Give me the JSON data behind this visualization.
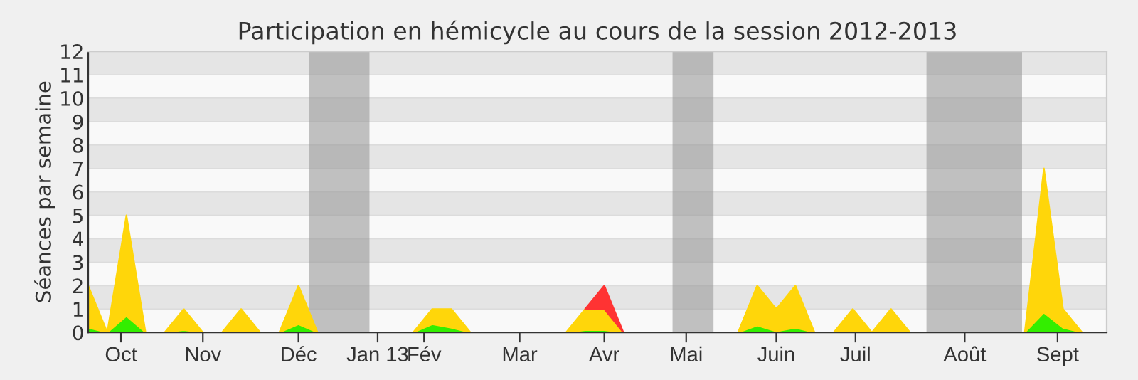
{
  "chart_data": {
    "type": "area",
    "stacked": true,
    "title": "Participation en hémicycle au cours de la session 2012-2013",
    "ylabel": "Séances par semaine",
    "x": [
      "2012-09-24",
      "2012-10-01",
      "2012-10-08",
      "2012-10-15",
      "2012-10-22",
      "2012-10-29",
      "2012-11-05",
      "2012-11-12",
      "2012-11-19",
      "2012-11-26",
      "2012-12-03",
      "2012-12-10",
      "2012-12-17",
      "2012-12-24",
      "2012-12-31",
      "2013-01-07",
      "2013-01-14",
      "2013-01-21",
      "2013-01-28",
      "2013-02-04",
      "2013-02-11",
      "2013-02-18",
      "2013-02-25",
      "2013-03-04",
      "2013-03-11",
      "2013-03-18",
      "2013-03-25",
      "2013-04-01",
      "2013-04-08",
      "2013-04-15",
      "2013-04-22",
      "2013-04-29",
      "2013-05-06",
      "2013-05-13",
      "2013-05-20",
      "2013-05-27",
      "2013-06-03",
      "2013-06-10",
      "2013-06-17",
      "2013-06-24",
      "2013-07-01",
      "2013-07-08",
      "2013-07-15",
      "2013-07-22",
      "2013-07-29",
      "2013-08-05",
      "2013-08-12",
      "2013-08-19",
      "2013-08-26",
      "2013-09-02",
      "2013-09-09",
      "2013-09-16",
      "2013-09-23"
    ],
    "series": [
      {
        "color": "#33ee00",
        "values": [
          0.2,
          0,
          0.7,
          0,
          0,
          0.1,
          0,
          0,
          0.05,
          0,
          0,
          0.35,
          0,
          0,
          0,
          0,
          0,
          0,
          0.35,
          0.2,
          0,
          0,
          0,
          0,
          0,
          0,
          0.1,
          0.1,
          0,
          0,
          0,
          0,
          0,
          0,
          0,
          0.3,
          0.05,
          0.2,
          0,
          0,
          0.05,
          0,
          0.05,
          0,
          0,
          0,
          0,
          0,
          0,
          0,
          0.85,
          0.2,
          0
        ]
      },
      {
        "color": "#ffd60a",
        "values": [
          1.8,
          0,
          4.3,
          0,
          0,
          0.9,
          0,
          0,
          0.95,
          0,
          0,
          1.65,
          0,
          0,
          0,
          0,
          0,
          0,
          0.65,
          0.8,
          0,
          0,
          0,
          0,
          0,
          0,
          0.9,
          0.9,
          0,
          0,
          0,
          0,
          0,
          0,
          0,
          1.7,
          0.95,
          1.8,
          0,
          0,
          0.95,
          0,
          0.95,
          0,
          0,
          0,
          0,
          0,
          0,
          0,
          6.15,
          0.8,
          0
        ]
      },
      {
        "color": "#ff3333",
        "values": [
          null,
          null,
          null,
          null,
          null,
          null,
          null,
          null,
          null,
          null,
          null,
          null,
          null,
          null,
          null,
          null,
          null,
          null,
          null,
          null,
          null,
          null,
          null,
          null,
          null,
          null,
          0,
          1,
          0,
          null,
          null,
          null,
          null,
          null,
          null,
          null,
          null,
          null,
          null,
          null,
          null,
          null,
          null,
          null,
          null,
          null,
          null,
          null,
          null,
          null,
          null,
          null,
          null
        ]
      }
    ],
    "xlim": [
      "2012-09-24",
      "2013-10-02"
    ],
    "ylim": [
      0,
      12
    ],
    "yticks": [
      0,
      1,
      2,
      3,
      4,
      5,
      6,
      7,
      8,
      9,
      10,
      11,
      12
    ],
    "xticks": [
      {
        "value": "2012-10-06",
        "label": "Oct"
      },
      {
        "value": "2012-11-05",
        "label": "Nov"
      },
      {
        "value": "2012-12-10",
        "label": "Déc"
      },
      {
        "value": "2013-01-08",
        "label": "Jan 13"
      },
      {
        "value": "2013-01-25",
        "label": "Fév"
      },
      {
        "value": "2013-03-01",
        "label": "Mar"
      },
      {
        "value": "2013-04-01",
        "label": "Avr"
      },
      {
        "value": "2013-05-01",
        "label": "Mai"
      },
      {
        "value": "2013-06-03",
        "label": "Juin"
      },
      {
        "value": "2013-07-02",
        "label": "Juil"
      },
      {
        "value": "2013-08-11",
        "label": "Août"
      },
      {
        "value": "2013-09-14",
        "label": "Sept"
      }
    ],
    "bands": [
      {
        "axis": "x",
        "from": "2012-12-14",
        "to": "2013-01-05",
        "color": "#999999"
      },
      {
        "axis": "x",
        "from": "2013-04-26",
        "to": "2013-05-11",
        "color": "#999999"
      },
      {
        "axis": "x",
        "from": "2013-07-28",
        "to": "2013-09-01",
        "color": "#999999"
      }
    ],
    "grid": "y"
  }
}
